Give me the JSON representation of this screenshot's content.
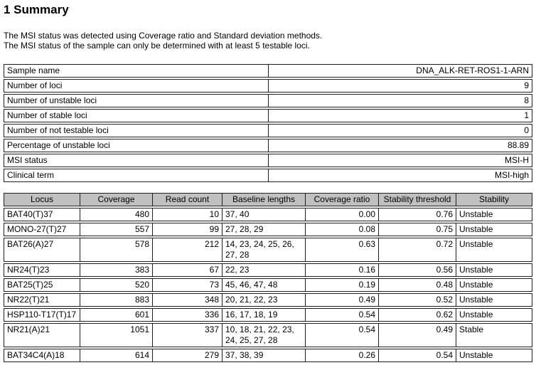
{
  "page": {
    "heading": "1 Summary",
    "intro_line1": "The MSI status was detected using Coverage ratio and Standard deviation methods.",
    "intro_line2": "The MSI status of the sample can only be determined with at least 5 testable loci."
  },
  "summary_table": {
    "rows": [
      {
        "label": "Sample name",
        "value": "DNA_ALK-RET-ROS1-1-ARN"
      },
      {
        "label": "Number of loci",
        "value": "9"
      },
      {
        "label": "Number of unstable loci",
        "value": "8"
      },
      {
        "label": "Number of stable loci",
        "value": "1"
      },
      {
        "label": "Number of not testable loci",
        "value": "0"
      },
      {
        "label": "Percentage of unstable loci",
        "value": "88.89"
      },
      {
        "label": "MSI status",
        "value": "MSI-H"
      },
      {
        "label": "Clinical term",
        "value": "MSI-high"
      }
    ]
  },
  "loci_table": {
    "columns": [
      "Locus",
      "Coverage",
      "Read count",
      "Baseline lengths",
      "Coverage ratio",
      "Stability threshold",
      "Stability"
    ],
    "rows": [
      [
        "BAT40(T)37",
        "480",
        "10",
        "37, 40",
        "0.00",
        "0.76",
        "Unstable"
      ],
      [
        "MONO-27(T)27",
        "557",
        "99",
        "27, 28, 29",
        "0.08",
        "0.75",
        "Unstable"
      ],
      [
        "BAT26(A)27",
        "578",
        "212",
        "14, 23, 24, 25, 26, 27, 28",
        "0.63",
        "0.72",
        "Unstable"
      ],
      [
        "NR24(T)23",
        "383",
        "67",
        "22, 23",
        "0.16",
        "0.56",
        "Unstable"
      ],
      [
        "BAT25(T)25",
        "520",
        "73",
        "45, 46, 47, 48",
        "0.19",
        "0.48",
        "Unstable"
      ],
      [
        "NR22(T)21",
        "883",
        "348",
        "20, 21, 22, 23",
        "0.49",
        "0.52",
        "Unstable"
      ],
      [
        "HSP110-T17(T)17",
        "601",
        "336",
        "16, 17, 18, 19",
        "0.54",
        "0.62",
        "Unstable"
      ],
      [
        "NR21(A)21",
        "1051",
        "337",
        "10, 18, 21, 22, 23, 24, 25, 27, 28",
        "0.54",
        "0.49",
        "Stable"
      ],
      [
        "BAT34C4(A)18",
        "614",
        "279",
        "37, 38, 39",
        "0.26",
        "0.54",
        "Unstable"
      ]
    ]
  },
  "colors": {
    "header_bg": "#c0c0c0",
    "border": "#1f1f1f",
    "text": "#000000",
    "background": "#ffffff"
  }
}
